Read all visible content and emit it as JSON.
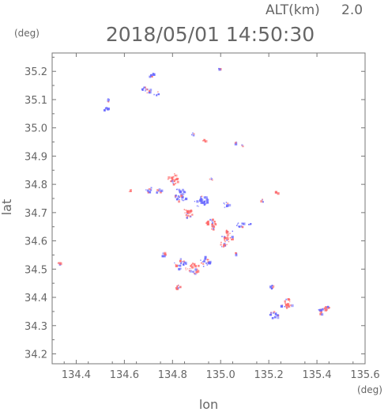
{
  "chart_data": {
    "type": "scatter",
    "title": "2018/05/01 14:50:30",
    "altitude_label": "ALT(km)",
    "altitude_value": "2.0",
    "xlabel": "lon",
    "ylabel": "lat",
    "x_unit": "(deg)",
    "y_unit": "(deg)",
    "xlim": [
      134.3,
      135.6
    ],
    "ylim": [
      34.165,
      35.265
    ],
    "x_ticks": [
      "134.4",
      "134.6",
      "134.8",
      "135.0",
      "135.2",
      "135.4",
      "135.6"
    ],
    "y_ticks": [
      "34.2",
      "34.3",
      "34.4",
      "34.5",
      "34.6",
      "34.7",
      "34.8",
      "34.9",
      "35.0",
      "35.1",
      "35.2"
    ],
    "grid": false,
    "legend": "none",
    "colors": {
      "positive": "#ff6a6a",
      "negative": "#6a6aff",
      "axis": "#777777"
    },
    "clusters": [
      {
        "lon": 134.33,
        "lat": 34.525,
        "r": 0.008,
        "n": 6,
        "color": "positive"
      },
      {
        "lon": 134.53,
        "lat": 35.1,
        "r": 0.008,
        "n": 6,
        "color": "negative"
      },
      {
        "lon": 134.52,
        "lat": 35.07,
        "r": 0.01,
        "n": 8,
        "color": "negative"
      },
      {
        "lon": 134.69,
        "lat": 35.14,
        "r": 0.02,
        "n": 14,
        "color": "negative"
      },
      {
        "lon": 134.71,
        "lat": 35.19,
        "r": 0.012,
        "n": 8,
        "color": "negative"
      },
      {
        "lon": 134.73,
        "lat": 35.125,
        "r": 0.012,
        "n": 6,
        "color": "negative"
      },
      {
        "lon": 134.99,
        "lat": 35.215,
        "r": 0.006,
        "n": 3,
        "color": "negative"
      },
      {
        "lon": 134.88,
        "lat": 34.98,
        "r": 0.006,
        "n": 4,
        "color": "negative"
      },
      {
        "lon": 134.93,
        "lat": 34.955,
        "r": 0.008,
        "n": 5,
        "color": "positive"
      },
      {
        "lon": 135.06,
        "lat": 34.95,
        "r": 0.006,
        "n": 3,
        "color": "negative"
      },
      {
        "lon": 135.09,
        "lat": 34.94,
        "r": 0.006,
        "n": 3,
        "color": "positive"
      },
      {
        "lon": 134.62,
        "lat": 34.78,
        "r": 0.006,
        "n": 4,
        "color": "positive"
      },
      {
        "lon": 134.7,
        "lat": 34.785,
        "r": 0.014,
        "n": 10,
        "color": "negative"
      },
      {
        "lon": 134.74,
        "lat": 34.78,
        "r": 0.012,
        "n": 8,
        "color": "negative"
      },
      {
        "lon": 134.8,
        "lat": 34.82,
        "r": 0.026,
        "n": 26,
        "color": "positive"
      },
      {
        "lon": 134.83,
        "lat": 34.765,
        "r": 0.03,
        "n": 30,
        "color": "negative"
      },
      {
        "lon": 134.86,
        "lat": 34.7,
        "r": 0.022,
        "n": 20,
        "color": "positive"
      },
      {
        "lon": 134.92,
        "lat": 34.74,
        "r": 0.03,
        "n": 28,
        "color": "negative"
      },
      {
        "lon": 134.96,
        "lat": 34.82,
        "r": 0.008,
        "n": 5,
        "color": "negative"
      },
      {
        "lon": 134.96,
        "lat": 34.66,
        "r": 0.025,
        "n": 22,
        "color": "positive"
      },
      {
        "lon": 135.02,
        "lat": 34.73,
        "r": 0.014,
        "n": 10,
        "color": "negative"
      },
      {
        "lon": 135.03,
        "lat": 34.62,
        "r": 0.03,
        "n": 26,
        "color": "positive"
      },
      {
        "lon": 135.08,
        "lat": 34.66,
        "r": 0.016,
        "n": 12,
        "color": "negative"
      },
      {
        "lon": 135.01,
        "lat": 34.59,
        "r": 0.014,
        "n": 10,
        "color": "positive"
      },
      {
        "lon": 135.12,
        "lat": 34.66,
        "r": 0.006,
        "n": 3,
        "color": "negative"
      },
      {
        "lon": 135.23,
        "lat": 34.775,
        "r": 0.006,
        "n": 4,
        "color": "positive"
      },
      {
        "lon": 135.17,
        "lat": 34.745,
        "r": 0.006,
        "n": 4,
        "color": "negative"
      },
      {
        "lon": 135.06,
        "lat": 34.555,
        "r": 0.006,
        "n": 3,
        "color": "negative"
      },
      {
        "lon": 134.76,
        "lat": 34.555,
        "r": 0.01,
        "n": 6,
        "color": "negative"
      },
      {
        "lon": 134.83,
        "lat": 34.52,
        "r": 0.025,
        "n": 18,
        "color": "negative"
      },
      {
        "lon": 134.88,
        "lat": 34.505,
        "r": 0.028,
        "n": 24,
        "color": "positive"
      },
      {
        "lon": 134.93,
        "lat": 34.53,
        "r": 0.024,
        "n": 18,
        "color": "negative"
      },
      {
        "lon": 134.82,
        "lat": 34.44,
        "r": 0.01,
        "n": 8,
        "color": "positive"
      },
      {
        "lon": 135.21,
        "lat": 34.44,
        "r": 0.008,
        "n": 6,
        "color": "negative"
      },
      {
        "lon": 135.27,
        "lat": 34.38,
        "r": 0.024,
        "n": 20,
        "color": "positive"
      },
      {
        "lon": 135.22,
        "lat": 34.34,
        "r": 0.018,
        "n": 14,
        "color": "negative"
      },
      {
        "lon": 135.42,
        "lat": 34.355,
        "r": 0.016,
        "n": 12,
        "color": "negative"
      },
      {
        "lon": 135.44,
        "lat": 34.365,
        "r": 0.012,
        "n": 10,
        "color": "positive"
      }
    ]
  }
}
